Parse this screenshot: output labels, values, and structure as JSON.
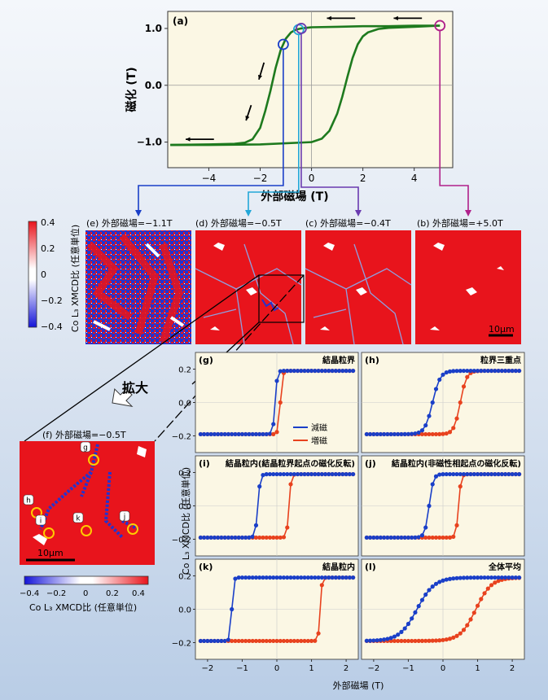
{
  "hysteresis": {
    "panel": "(a)",
    "ylabel": "磁化 (T)",
    "xlabel": "外部磁場 (T)",
    "xticks": [
      "−4",
      "−2",
      "0",
      "2",
      "4"
    ],
    "xtick_values": [
      -4,
      -2,
      0,
      2,
      4
    ],
    "yticks": [
      "1.0",
      "0.0",
      "−1.0"
    ],
    "ytick_values": [
      1.0,
      0.0,
      -1.0
    ],
    "xlim": [
      -5.6,
      5.5
    ],
    "ylim": [
      -1.45,
      1.3
    ],
    "line_color": "#1e7a1e",
    "descending_x": [
      -5.5,
      -4.0,
      -3.0,
      -2.6,
      -2.3,
      -2.0,
      -1.8,
      -1.6,
      -1.4,
      -1.2,
      -1.0,
      -0.8,
      -0.6,
      -0.4,
      -0.2,
      0.0,
      1.0,
      2.0,
      3.0,
      4.0,
      5.0
    ],
    "descending_y": [
      -1.05,
      -1.04,
      -1.03,
      -1.01,
      -0.95,
      -0.75,
      -0.45,
      -0.1,
      0.3,
      0.62,
      0.82,
      0.93,
      0.98,
      1.0,
      1.01,
      1.02,
      1.03,
      1.04,
      1.04,
      1.05,
      1.05
    ],
    "ascending_x": [
      -5.5,
      -4.0,
      -2.0,
      0.0,
      0.4,
      0.7,
      1.0,
      1.2,
      1.4,
      1.6,
      1.8,
      2.0,
      2.2,
      2.6,
      3.0,
      4.0,
      5.0
    ],
    "ascending_y": [
      -1.05,
      -1.05,
      -1.04,
      -1.0,
      -0.94,
      -0.8,
      -0.5,
      -0.2,
      0.15,
      0.48,
      0.72,
      0.86,
      0.93,
      0.99,
      1.01,
      1.03,
      1.05
    ],
    "markers": [
      {
        "x": -1.1,
        "y": 0.72,
        "color": "#1a3fc8"
      },
      {
        "x": -0.5,
        "y": 0.98,
        "color": "#23a7d8"
      },
      {
        "x": -0.4,
        "y": 1.0,
        "color": "#6a3bb0"
      },
      {
        "x": 5.0,
        "y": 1.05,
        "color": "#b0208a"
      }
    ]
  },
  "colorbar_top": {
    "ticks": [
      "0.4",
      "0.2",
      "0",
      "−0.2",
      "−0.4"
    ],
    "label": "Co L₃ XMCD比 (任意単位)"
  },
  "maps": [
    {
      "label": "(e) 外部磁場=−1.1T",
      "color": "#1a3fc8"
    },
    {
      "label": "(d) 外部磁場=−0.5T",
      "color": "#23a7d8"
    },
    {
      "label": "(c) 外部磁場=−0.4T",
      "color": "#6a3bb0"
    },
    {
      "label": "(b) 外部磁場=+5.0T",
      "color": "#b0208a"
    }
  ],
  "scalebar_main": "10μm",
  "zoom_label": "拡大",
  "inset": {
    "title": "(f) 外部磁場=−0.5T",
    "points": [
      "g",
      "h",
      "i",
      "k",
      "j"
    ],
    "scalebar": "10μm",
    "colorbar_ticks": [
      "−0.4",
      "−0.2",
      "0",
      "0.2",
      "0.4"
    ],
    "colorbar_label": "Co L₃ XMCD比 (任意単位)"
  },
  "small_plots": {
    "ylabel": "Co L₃ XMCD比 (任意単位)",
    "xlabel": "外部磁場 (T)",
    "xticks": [
      "−2",
      "−1",
      "0",
      "1",
      "2"
    ],
    "xtick_values": [
      -2,
      -1,
      0,
      1,
      2
    ],
    "yticks": [
      "0.2",
      "0.0",
      "−0.2"
    ],
    "ytick_values": [
      0.2,
      0.0,
      -0.2
    ],
    "xlim": [
      -2.35,
      2.35
    ],
    "ylim": [
      -0.3,
      0.3
    ],
    "legend": [
      {
        "name": "減磁",
        "color": "#1a3fc8"
      },
      {
        "name": "増磁",
        "color": "#e8421e"
      }
    ],
    "panels": [
      {
        "id": "(g)",
        "title": "結晶粒界",
        "sw_dec": -0.05,
        "sw_inc": 0.1,
        "dec_width": 0.06,
        "inc_width": 0.06
      },
      {
        "id": "(h)",
        "title": "粒界三重点",
        "sw_dec": -0.3,
        "sw_inc": 0.5,
        "dec_width": 0.22,
        "inc_width": 0.18
      },
      {
        "id": "(i)",
        "title": "結晶粒内(結晶粒界起点の磁化反転)",
        "sw_dec": -0.55,
        "sw_inc": 0.35,
        "dec_width": 0.07,
        "inc_width": 0.06
      },
      {
        "id": "(j)",
        "title": "結晶粒内(非磁性相起点の磁化反転)",
        "sw_dec": -0.4,
        "sw_inc": 0.45,
        "dec_width": 0.12,
        "inc_width": 0.07
      },
      {
        "id": "(k)",
        "title": "結晶粒内",
        "sw_dec": -1.3,
        "sw_inc": 1.25,
        "dec_width": 0.05,
        "inc_width": 0.05
      },
      {
        "id": "(l)",
        "title": "全体平均",
        "sw_dec": -0.75,
        "sw_inc": 0.95,
        "dec_width": 0.5,
        "inc_width": 0.45
      }
    ]
  }
}
